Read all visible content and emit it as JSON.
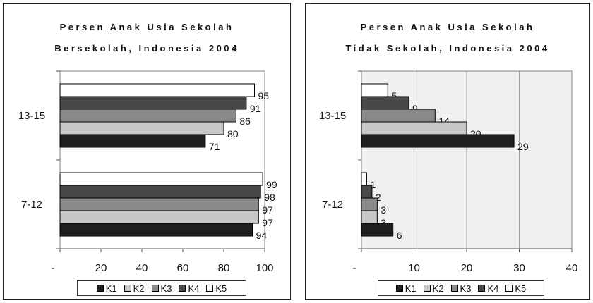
{
  "chart_data": [
    {
      "type": "bar",
      "orientation": "horizontal",
      "title_lines": [
        "Persen Anak Usia Sekolah",
        "Bersekolah, Indonesia 2004"
      ],
      "categories": [
        "13-15",
        "7-12"
      ],
      "series": [
        {
          "name": "K1",
          "color": "#1e1e1e",
          "values": [
            71,
            94
          ]
        },
        {
          "name": "K2",
          "color": "#c8c8c8",
          "values": [
            80,
            97
          ]
        },
        {
          "name": "K3",
          "color": "#8a8a8a",
          "values": [
            86,
            97
          ]
        },
        {
          "name": "K4",
          "color": "#474747",
          "values": [
            91,
            98
          ]
        },
        {
          "name": "K5",
          "color": "#ffffff",
          "values": [
            95,
            99
          ]
        }
      ],
      "xlim": [
        0,
        100
      ],
      "xticks": [
        "-",
        "20",
        "40",
        "60",
        "80",
        "100"
      ],
      "grid": false,
      "legend_position": "bottom"
    },
    {
      "type": "bar",
      "orientation": "horizontal",
      "title_lines": [
        "Persen Anak Usia Sekolah",
        "Tidak Sekolah, Indonesia 2004"
      ],
      "categories": [
        "13-15",
        "7-12"
      ],
      "series": [
        {
          "name": "K1",
          "color": "#1e1e1e",
          "values": [
            29,
            6
          ]
        },
        {
          "name": "K2",
          "color": "#c8c8c8",
          "values": [
            20,
            3
          ]
        },
        {
          "name": "K3",
          "color": "#8a8a8a",
          "values": [
            14,
            3
          ]
        },
        {
          "name": "K4",
          "color": "#474747",
          "values": [
            9,
            2
          ]
        },
        {
          "name": "K5",
          "color": "#ffffff",
          "values": [
            5,
            1
          ]
        }
      ],
      "xlim": [
        0,
        40
      ],
      "xticks": [
        "-",
        "10",
        "20",
        "30",
        "40"
      ],
      "grid": true,
      "legend_position": "bottom"
    }
  ]
}
